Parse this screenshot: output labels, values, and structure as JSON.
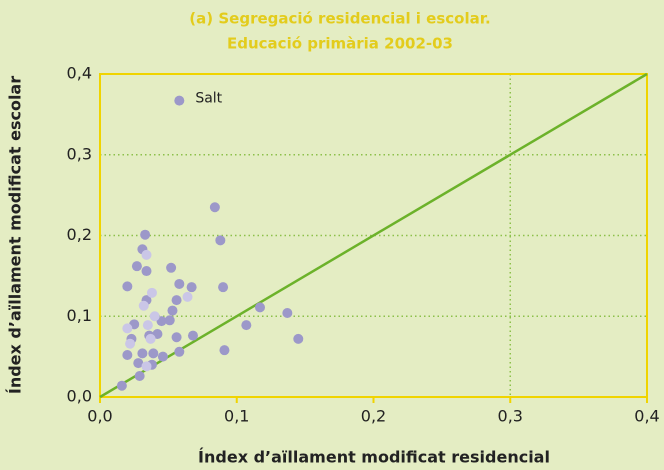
{
  "chart_data": {
    "type": "scatter",
    "title": [
      "(a) Segregació residencial i escolar.",
      "Educació primària 2002-03"
    ],
    "x_label": "Índex d’aïllament modificat residencial",
    "y_label": "Índex d’aïllament modificat escolar",
    "xlim": [
      0,
      0.4
    ],
    "ylim": [
      0,
      0.4
    ],
    "xticks": [
      {
        "value": 0,
        "label": "0,0"
      },
      {
        "value": 0.1,
        "label": "0,1"
      },
      {
        "value": 0.2,
        "label": "0,2"
      },
      {
        "value": 0.3,
        "label": "0,3"
      },
      {
        "value": 0.4,
        "label": "0,4"
      }
    ],
    "yticks": [
      {
        "value": 0,
        "label": "0,0"
      },
      {
        "value": 0.1,
        "label": "0,1"
      },
      {
        "value": 0.2,
        "label": "0,2"
      },
      {
        "value": 0.3,
        "label": "0,3"
      },
      {
        "value": 0.4,
        "label": "0,4"
      }
    ],
    "grid": true,
    "xgrid": [
      0.3
    ],
    "diagonal": true,
    "series": [
      {
        "color": "#9c98c9",
        "x": [
          0.016,
          0.02,
          0.02,
          0.023,
          0.025,
          0.027,
          0.028,
          0.029,
          0.031,
          0.031,
          0.033,
          0.034,
          0.034,
          0.036,
          0.038,
          0.039,
          0.042,
          0.045,
          0.046,
          0.051,
          0.052,
          0.053,
          0.056,
          0.056,
          0.058,
          0.058,
          0.058,
          0.067,
          0.068,
          0.084,
          0.088,
          0.09,
          0.091,
          0.107,
          0.117,
          0.137,
          0.145
        ],
        "values": [
          0.014,
          0.137,
          0.052,
          0.072,
          0.09,
          0.162,
          0.042,
          0.026,
          0.054,
          0.183,
          0.201,
          0.156,
          0.12,
          0.076,
          0.04,
          0.054,
          0.078,
          0.094,
          0.05,
          0.095,
          0.16,
          0.107,
          0.074,
          0.12,
          0.056,
          0.14,
          0.367,
          0.136,
          0.076,
          0.235,
          0.194,
          0.136,
          0.058,
          0.089,
          0.111,
          0.104,
          0.072
        ]
      },
      {
        "color": "#cac6e7",
        "x": [
          0.02,
          0.022,
          0.034,
          0.035,
          0.037,
          0.038,
          0.04,
          0.064,
          0.034,
          0.032
        ],
        "values": [
          0.085,
          0.066,
          0.176,
          0.089,
          0.072,
          0.129,
          0.1,
          0.124,
          0.038,
          0.113
        ]
      }
    ],
    "annotations": [
      {
        "text": "Salt",
        "x": 0.058,
        "y": 0.367
      }
    ]
  }
}
